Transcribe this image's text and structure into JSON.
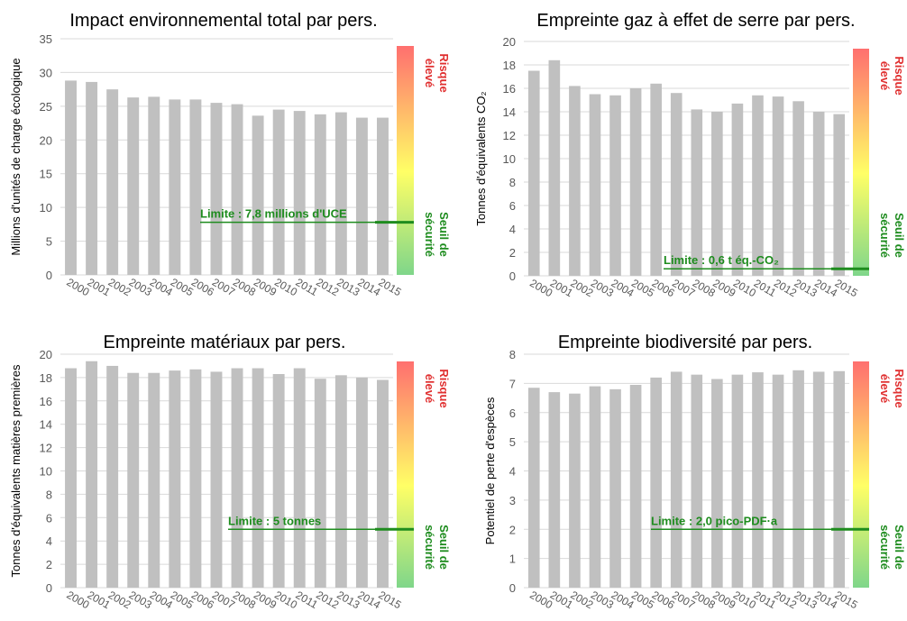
{
  "risk_labels": {
    "high": [
      "Risque",
      "élevé"
    ],
    "safe": [
      "Seuil de",
      "sécurité"
    ]
  },
  "colors": {
    "bar": "#c0c0c0",
    "limit": "#1e8c1e",
    "grid": "#d9d9d9",
    "axis_text": "#595959",
    "risk_top": "#ff6f6f",
    "risk_mid": "#ffff66",
    "risk_bottom": "#7fd68a",
    "risk_text": "#e03030",
    "safe_text": "#1e8c1e"
  },
  "chart_data": [
    {
      "type": "bar",
      "title": "Impact environnemental total par pers.",
      "ylabel": "Millions d'unités de charge écologique",
      "ylabel_lines": [
        "Millions d'unités de charge écologique"
      ],
      "categories": [
        "2000",
        "2001",
        "2002",
        "2003",
        "2004",
        "2005",
        "2006",
        "2007",
        "2008",
        "2009",
        "2010",
        "2011",
        "2012",
        "2013",
        "2014",
        "2015"
      ],
      "values": [
        28.8,
        28.6,
        27.5,
        26.3,
        26.4,
        26.0,
        26.0,
        25.5,
        25.3,
        23.6,
        24.5,
        24.3,
        23.8,
        24.1,
        23.3,
        23.3
      ],
      "ylim": [
        0,
        35
      ],
      "yticks": [
        0,
        5,
        10,
        15,
        20,
        25,
        30,
        35
      ],
      "grid": true,
      "limit": {
        "value": 7.8,
        "label": "Limite : 7,8 millions d'UCE"
      }
    },
    {
      "type": "bar",
      "title": "Empreinte gaz à effet de serre par pers.",
      "ylabel": "Tonnes d'équivalents CO₂",
      "ylabel_lines": [
        "Tonnes d'équivalents CO₂"
      ],
      "categories": [
        "2000",
        "2001",
        "2002",
        "2003",
        "2004",
        "2005",
        "2006",
        "2007",
        "2008",
        "2009",
        "2010",
        "2011",
        "2012",
        "2013",
        "2014",
        "2015"
      ],
      "values": [
        17.5,
        18.4,
        16.2,
        15.5,
        15.4,
        16.0,
        16.4,
        15.6,
        14.2,
        14.0,
        14.7,
        15.4,
        15.3,
        14.9,
        14.0,
        13.8
      ],
      "ylim": [
        0,
        20
      ],
      "yticks": [
        0,
        2,
        4,
        6,
        8,
        10,
        12,
        14,
        16,
        18,
        20
      ],
      "grid": true,
      "limit": {
        "value": 0.6,
        "label": "Limite : 0,6 t éq.-CO₂"
      }
    },
    {
      "type": "bar",
      "title": "Empreinte matériaux par pers.",
      "ylabel": "Tonnes d'équivalents matières premières",
      "ylabel_lines": [
        "Tonnes d'équivalents matières premières"
      ],
      "categories": [
        "2000",
        "2001",
        "2002",
        "2003",
        "2004",
        "2005",
        "2006",
        "2007",
        "2008",
        "2009",
        "2010",
        "2011",
        "2012",
        "2013",
        "2014",
        "2015"
      ],
      "values": [
        18.8,
        19.4,
        19.0,
        18.4,
        18.4,
        18.6,
        18.7,
        18.5,
        18.8,
        18.8,
        18.3,
        18.8,
        17.9,
        18.2,
        18.0,
        17.8
      ],
      "ylim": [
        0,
        20
      ],
      "yticks": [
        0,
        2,
        4,
        6,
        8,
        10,
        12,
        14,
        16,
        18,
        20
      ],
      "grid": true,
      "limit": {
        "value": 5,
        "label": "Limite : 5 tonnes"
      }
    },
    {
      "type": "bar",
      "title": "Empreinte biodiversité par pers.",
      "ylabel": "Potentiel de perte d'espèces",
      "ylabel_lines": [
        "Potentiel de perte d'espèces"
      ],
      "categories": [
        "2000",
        "2001",
        "2002",
        "2003",
        "2004",
        "2005",
        "2006",
        "2007",
        "2008",
        "2009",
        "2010",
        "2011",
        "2012",
        "2013",
        "2014",
        "2015"
      ],
      "values": [
        6.85,
        6.7,
        6.65,
        6.9,
        6.8,
        6.95,
        7.2,
        7.4,
        7.3,
        7.15,
        7.3,
        7.38,
        7.3,
        7.45,
        7.4,
        7.42
      ],
      "ylim": [
        0,
        8
      ],
      "yticks": [
        0,
        1,
        2,
        3,
        4,
        5,
        6,
        7,
        8
      ],
      "grid": true,
      "limit": {
        "value": 2.0,
        "label": "Limite : 2,0 pico-PDF·a"
      }
    }
  ]
}
